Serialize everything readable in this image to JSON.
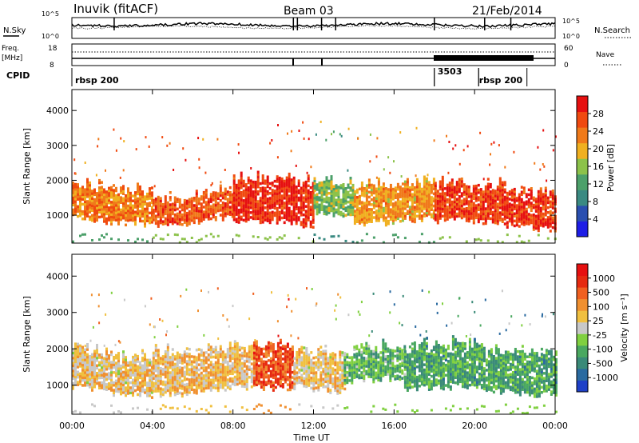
{
  "header": {
    "station": "Inuvik (fitACF)",
    "beam": "Beam 03",
    "date": "21/Feb/2014"
  },
  "top_panels": {
    "nsky_label": "N.Sky",
    "nsearch_label": "N.Search",
    "nsky_ticks": [
      "10^5",
      "10^0"
    ],
    "nsearch_ticks": [
      "10^5",
      "10^0"
    ],
    "freq_label_top": "Freq.",
    "freq_label_bottom": "[MHz]",
    "freq_ticks": [
      "18",
      "8"
    ],
    "nave_label": "Nave",
    "nave_ticks": [
      "60",
      "0"
    ],
    "cpid_label": "CPID",
    "cpid_segments": [
      {
        "label": "rbsp 200",
        "start_hour": 0.0,
        "end_hour": 18.0
      },
      {
        "label": "3503",
        "start_hour": 18.0,
        "end_hour": 20.2
      },
      {
        "label": "rbsp 200",
        "start_hour": 20.2,
        "end_hour": 22.6
      }
    ]
  },
  "axes": {
    "ylabel": "Slant Range [km]",
    "xlabel": "Time UT",
    "y_ticks": [
      "1000",
      "2000",
      "3000",
      "4000"
    ],
    "x_ticks": [
      "00:00",
      "04:00",
      "08:00",
      "12:00",
      "16:00",
      "20:00",
      "00:00"
    ]
  },
  "power_colorbar": {
    "label": "Power [dB]",
    "ticks": [
      "28",
      "24",
      "20",
      "16",
      "12",
      "8",
      "4"
    ],
    "colors": [
      "#1e1ee6",
      "#2a4fb0",
      "#3a8a82",
      "#4ca06a",
      "#8cc24a",
      "#f0b020",
      "#f07a1a",
      "#f04a10",
      "#e61010"
    ]
  },
  "velocity_colorbar": {
    "label": "Velocity [m s⁻¹]",
    "ticks": [
      "1000",
      "500",
      "100",
      "25",
      "-25",
      "-100",
      "-500",
      "-1000"
    ],
    "colors": [
      "#1e40c8",
      "#2a6aa0",
      "#3a8a78",
      "#4aa860",
      "#80d040",
      "#c8c8c8",
      "#f0c040",
      "#f09030",
      "#f06020",
      "#e62a10",
      "#e61010"
    ]
  },
  "chart_data": {
    "type": "heatmap",
    "title": "Inuvik (fitACF)  Beam 03  21/Feb/2014",
    "xlabel": "Time UT",
    "ylabel": "Slant Range [km]",
    "x_range_hours": [
      0,
      24
    ],
    "ylim": [
      200,
      4600
    ],
    "panels": [
      {
        "name": "Power",
        "unit": "dB",
        "scale": [
          0,
          30
        ],
        "bands": [
          {
            "t_start": 0.0,
            "t_end": 4.0,
            "r_low": 900,
            "r_high": 1700,
            "level": 22
          },
          {
            "t_start": 4.0,
            "t_end": 8.0,
            "r_low": 900,
            "r_high": 1500,
            "level": 24
          },
          {
            "t_start": 8.0,
            "t_end": 12.0,
            "r_low": 800,
            "r_high": 1900,
            "level": 27
          },
          {
            "t_start": 12.0,
            "t_end": 14.0,
            "r_low": 1200,
            "r_high": 2000,
            "level": 14
          },
          {
            "t_start": 14.0,
            "t_end": 18.0,
            "r_low": 900,
            "r_high": 1800,
            "level": 20
          },
          {
            "t_start": 18.0,
            "t_end": 24.0,
            "r_low": 800,
            "r_high": 1700,
            "level": 26
          }
        ]
      },
      {
        "name": "Velocity",
        "unit": "m s-1",
        "scale": [
          -1000,
          1000
        ],
        "bands": [
          {
            "t_start": 0.0,
            "t_end": 4.0,
            "r_low": 900,
            "r_high": 1800,
            "level": 150
          },
          {
            "t_start": 4.0,
            "t_end": 9.0,
            "r_low": 900,
            "r_high": 1900,
            "level": 200
          },
          {
            "t_start": 9.0,
            "t_end": 11.0,
            "r_low": 900,
            "r_high": 1900,
            "level": 600
          },
          {
            "t_start": 11.0,
            "t_end": 13.5,
            "r_low": 1000,
            "r_high": 1900,
            "level": 150
          },
          {
            "t_start": 13.5,
            "t_end": 16.5,
            "r_low": 1300,
            "r_high": 2000,
            "level": -300
          },
          {
            "t_start": 16.5,
            "t_end": 24.0,
            "r_low": 900,
            "r_high": 1900,
            "level": -400
          }
        ]
      }
    ]
  }
}
